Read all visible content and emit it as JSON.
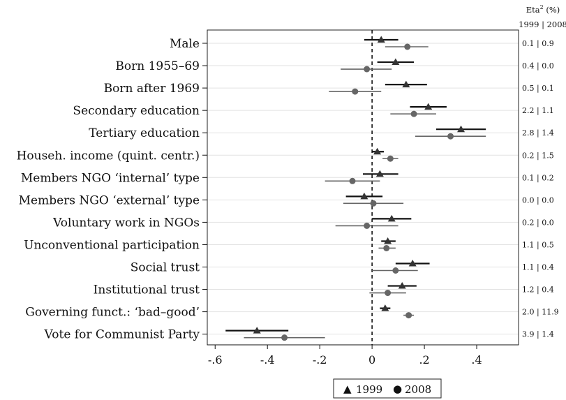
{
  "chart_data": {
    "type": "scatter",
    "title": "",
    "xlabel": "",
    "ylabel": "",
    "xlim": [
      -0.63,
      0.56
    ],
    "x_ticks": [
      -0.6,
      -0.4,
      -0.2,
      0,
      0.2,
      0.4
    ],
    "x_tick_labels": [
      "-.6",
      "-.4",
      "-.2",
      "0",
      ".2",
      ".4"
    ],
    "reference_line": 0,
    "grid": "horizontal",
    "categories": [
      "Male",
      "Born 1955–69",
      "Born after 1969",
      "Secondary education",
      "Tertiary education",
      "Househ. income (quint. centr.)",
      "Members NGO ‘internal’ type",
      "Members NGO ‘external’ type",
      "Voluntary work in NGOs",
      "Unconventional participation",
      "Social trust",
      "Institutional trust",
      "Governing funct.: ‘bad–good’",
      "Vote for Communist Party"
    ],
    "series": [
      {
        "name": "1999",
        "marker": "triangle",
        "color": "#333333",
        "estimates": [
          0.035,
          0.09,
          0.13,
          0.215,
          0.34,
          0.02,
          0.03,
          -0.03,
          0.075,
          0.06,
          0.155,
          0.115,
          0.05,
          -0.44
        ],
        "ci_low": [
          -0.03,
          0.02,
          0.05,
          0.145,
          0.245,
          0.0,
          -0.035,
          -0.1,
          0.0,
          0.035,
          0.09,
          0.06,
          0.03,
          -0.56
        ],
        "ci_high": [
          0.1,
          0.16,
          0.21,
          0.285,
          0.435,
          0.045,
          0.1,
          0.04,
          0.15,
          0.09,
          0.22,
          0.17,
          0.07,
          -0.32
        ]
      },
      {
        "name": "2008",
        "marker": "circle",
        "color": "#666666",
        "estimates": [
          0.135,
          -0.02,
          -0.065,
          0.16,
          0.3,
          0.07,
          -0.075,
          0.005,
          -0.02,
          0.055,
          0.09,
          0.06,
          0.14,
          -0.335
        ],
        "ci_low": [
          0.05,
          -0.12,
          -0.165,
          0.07,
          0.165,
          0.04,
          -0.18,
          -0.11,
          -0.14,
          0.025,
          0.0,
          -0.01,
          0.12,
          -0.49
        ],
        "ci_high": [
          0.215,
          0.075,
          0.035,
          0.245,
          0.435,
          0.1,
          0.03,
          0.12,
          0.1,
          0.09,
          0.175,
          0.13,
          0.16,
          -0.18
        ]
      }
    ],
    "eta_squared": {
      "header_label": "Eta",
      "header_superscript": "2",
      "header_unit": " (%)",
      "year_a": "1999",
      "year_sep": "|",
      "year_b": "2008",
      "values": [
        [
          "0.1",
          "0.9"
        ],
        [
          "0.4",
          "0.0"
        ],
        [
          "0.5",
          "0.1"
        ],
        [
          "2.2",
          "1.1"
        ],
        [
          "2.8",
          "1.4"
        ],
        [
          "0.2",
          "1.5"
        ],
        [
          "0.1",
          "0.2"
        ],
        [
          "0.0",
          "0.0"
        ],
        [
          "0.2",
          "0.0"
        ],
        [
          "1.1",
          "0.5"
        ],
        [
          "1.1",
          "0.4"
        ],
        [
          "1.2",
          "0.4"
        ],
        [
          "2.0",
          "11.9"
        ],
        [
          "3.9",
          "1.4"
        ]
      ]
    },
    "legend": {
      "position": "bottom",
      "items": [
        {
          "symbol": "▲",
          "label": "1999"
        },
        {
          "symbol": "●",
          "label": "2008"
        }
      ]
    }
  }
}
